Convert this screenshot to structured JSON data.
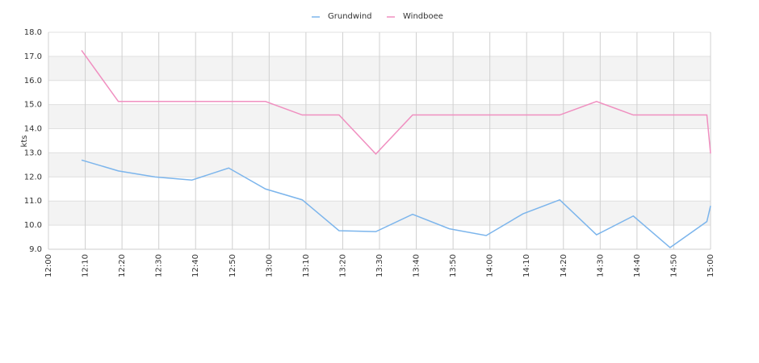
{
  "chart_data": {
    "type": "line",
    "y_label": "kts",
    "x": [
      "12:09",
      "12:19",
      "12:29",
      "12:39",
      "12:49",
      "12:59",
      "13:09",
      "13:19",
      "13:29",
      "13:39",
      "13:49",
      "13:59",
      "14:09",
      "14:19",
      "14:29",
      "14:39",
      "14:49",
      "14:59",
      "15:00"
    ],
    "series": [
      {
        "name": "Grundwind",
        "color": "#7cb5ec",
        "values": [
          12.7,
          12.25,
          12.0,
          11.87,
          12.37,
          11.5,
          11.05,
          9.77,
          9.73,
          10.45,
          9.85,
          9.57,
          10.47,
          11.05,
          9.6,
          10.38,
          9.07,
          10.15,
          10.8
        ]
      },
      {
        "name": "Windboee",
        "color": "#f08fc0",
        "values": [
          17.25,
          15.13,
          15.13,
          15.13,
          15.13,
          15.13,
          14.57,
          14.57,
          12.95,
          14.57,
          14.57,
          14.57,
          14.57,
          14.57,
          15.13,
          14.57,
          14.57,
          14.57,
          12.97
        ]
      }
    ],
    "xlim": [
      "12:00",
      "15:00"
    ],
    "xticks": [
      "12:00",
      "12:10",
      "12:20",
      "12:30",
      "12:40",
      "12:50",
      "13:00",
      "13:10",
      "13:20",
      "13:30",
      "13:40",
      "13:50",
      "14:00",
      "14:10",
      "14:20",
      "14:30",
      "14:40",
      "14:50",
      "15:00"
    ],
    "ylim": [
      9,
      18
    ],
    "yticks": [
      {
        "value": 9,
        "label": "9.0"
      },
      {
        "value": 10,
        "label": "10.0"
      },
      {
        "value": 11,
        "label": "11.0"
      },
      {
        "value": 12,
        "label": "12.0"
      },
      {
        "value": 13,
        "label": "13.0"
      },
      {
        "value": 14,
        "label": "14.0"
      },
      {
        "value": 15,
        "label": "15.0"
      },
      {
        "value": 16,
        "label": "16.0"
      },
      {
        "value": 17,
        "label": "17.0"
      },
      {
        "value": 18,
        "label": "18.0"
      }
    ],
    "grid": true
  }
}
